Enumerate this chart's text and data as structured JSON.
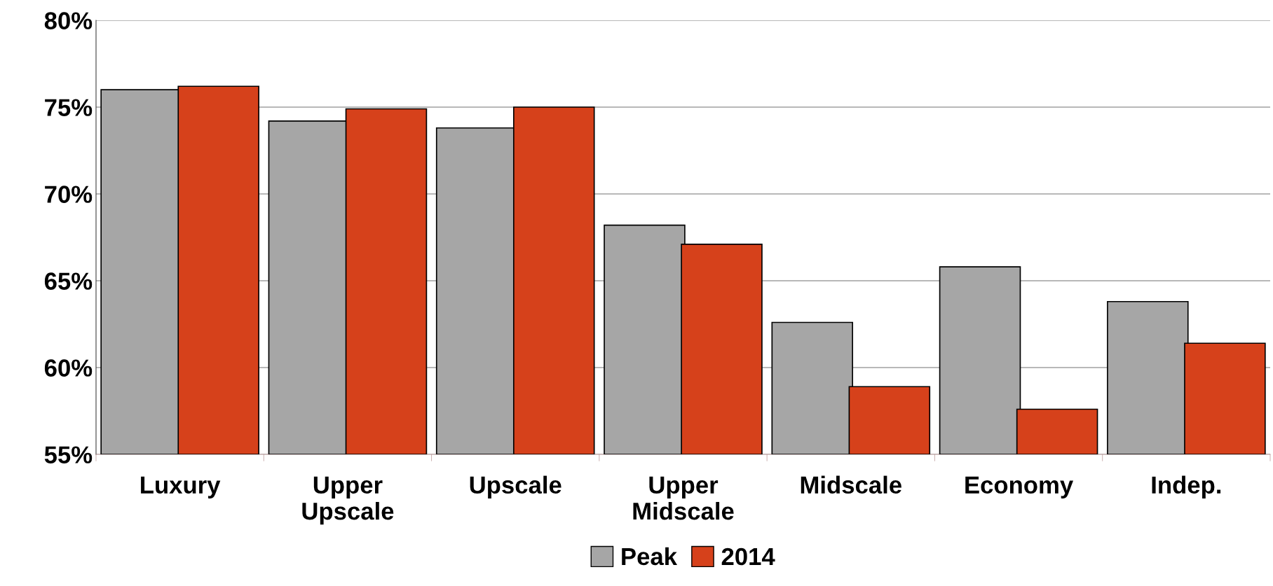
{
  "chart_data": {
    "type": "bar",
    "categories": [
      "Luxury",
      "Upper\nUpscale",
      "Upscale",
      "Upper\nMidscale",
      "Midscale",
      "Economy",
      "Indep."
    ],
    "series": [
      {
        "name": "Peak",
        "color": "#a6a6a6",
        "values": [
          76.0,
          74.2,
          73.8,
          68.2,
          62.6,
          65.8,
          63.8
        ]
      },
      {
        "name": "2014",
        "color": "#d6411b",
        "values": [
          76.2,
          74.9,
          75.0,
          67.1,
          58.9,
          57.6,
          61.4
        ]
      }
    ],
    "ylim": [
      55,
      80
    ],
    "yticks": [
      {
        "value": 55,
        "label": "55%"
      },
      {
        "value": 60,
        "label": "60%"
      },
      {
        "value": 65,
        "label": "65%"
      },
      {
        "value": 70,
        "label": "70%"
      },
      {
        "value": 75,
        "label": "75%"
      },
      {
        "value": 80,
        "label": "80%"
      }
    ],
    "grid": "y",
    "legend": "bottom"
  }
}
